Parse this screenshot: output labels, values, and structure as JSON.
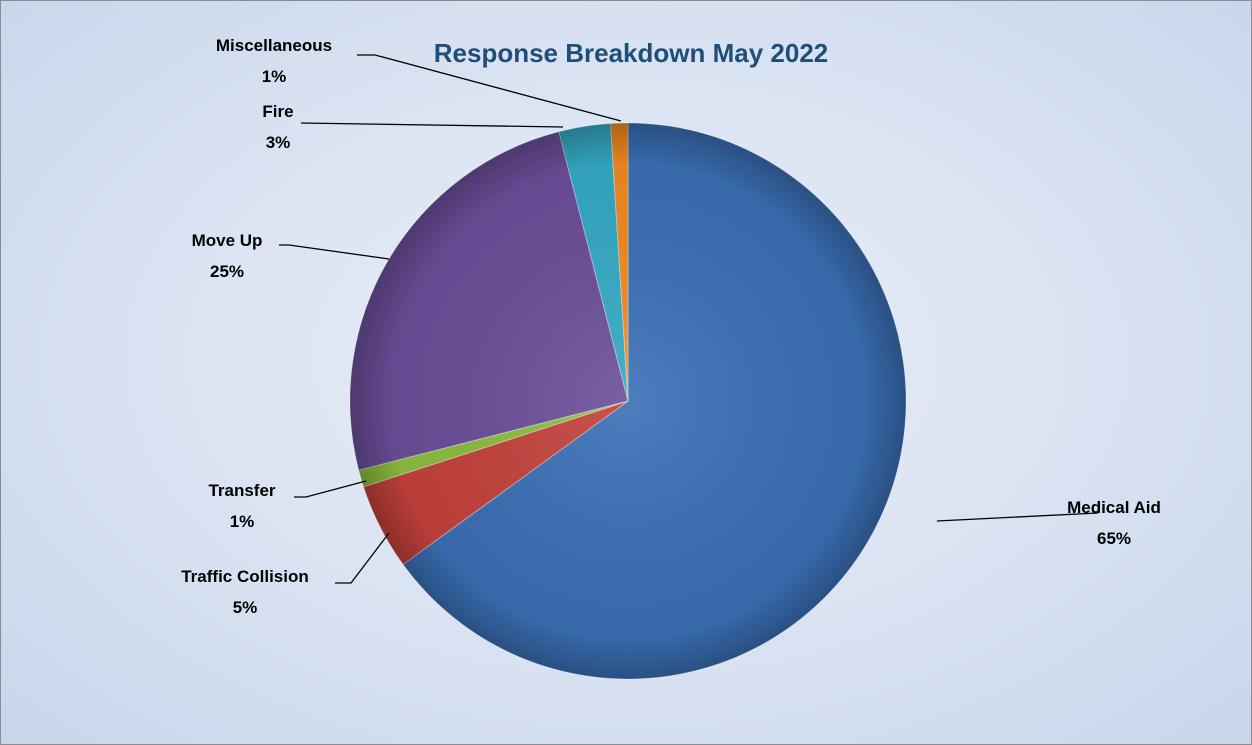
{
  "chart_data": {
    "type": "pie",
    "title": "Response Breakdown May 2022",
    "slices": [
      {
        "name": "Medical Aid",
        "value": 65,
        "label": "65%",
        "color": "#3a6fb5"
      },
      {
        "name": "Traffic Collision",
        "value": 5,
        "label": "5%",
        "color": "#c4413b"
      },
      {
        "name": "Transfer",
        "value": 1,
        "label": "1%",
        "color": "#8cbc3e"
      },
      {
        "name": "Move Up",
        "value": 25,
        "label": "25%",
        "color": "#6b4e99"
      },
      {
        "name": "Fire",
        "value": 3,
        "label": "3%",
        "color": "#35a9c4"
      },
      {
        "name": "Miscellaneous",
        "value": 1,
        "label": "1%",
        "color": "#f08a22"
      }
    ],
    "legend": "none",
    "data_labels": "outside with leader lines"
  }
}
